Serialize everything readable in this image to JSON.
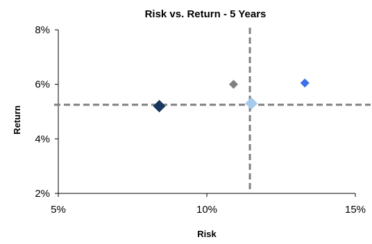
{
  "chart_data": {
    "type": "scatter",
    "title": "Risk vs. Return - 5 Years",
    "xlabel": "Risk",
    "ylabel": "Return",
    "xlim": [
      0.05,
      0.15
    ],
    "ylim": [
      0.02,
      0.08
    ],
    "xticks": [
      0.05,
      0.1,
      0.15
    ],
    "xtick_labels": [
      "5%",
      "10%",
      "15%"
    ],
    "yticks": [
      0.02,
      0.04,
      0.06,
      0.08
    ],
    "ytick_labels": [
      "2%",
      "4%",
      "6%",
      "8%"
    ],
    "grid": false,
    "legend": "none",
    "marker": "diamond",
    "points": [
      {
        "x": 0.084,
        "y": 0.052,
        "color": "#17375E",
        "size": "large"
      },
      {
        "x": 0.109,
        "y": 0.06,
        "color": "#808080",
        "size": "small"
      },
      {
        "x": 0.115,
        "y": 0.053,
        "color": "#A6CAEC",
        "size": "large"
      },
      {
        "x": 0.133,
        "y": 0.0605,
        "color": "#3D6FE8",
        "size": "small"
      }
    ],
    "reference_lines": [
      {
        "orientation": "vertical",
        "x": 0.1145,
        "color": "#808080",
        "style": "dashed"
      },
      {
        "orientation": "horizontal",
        "y": 0.0525,
        "color": "#808080",
        "style": "dashed"
      }
    ]
  }
}
